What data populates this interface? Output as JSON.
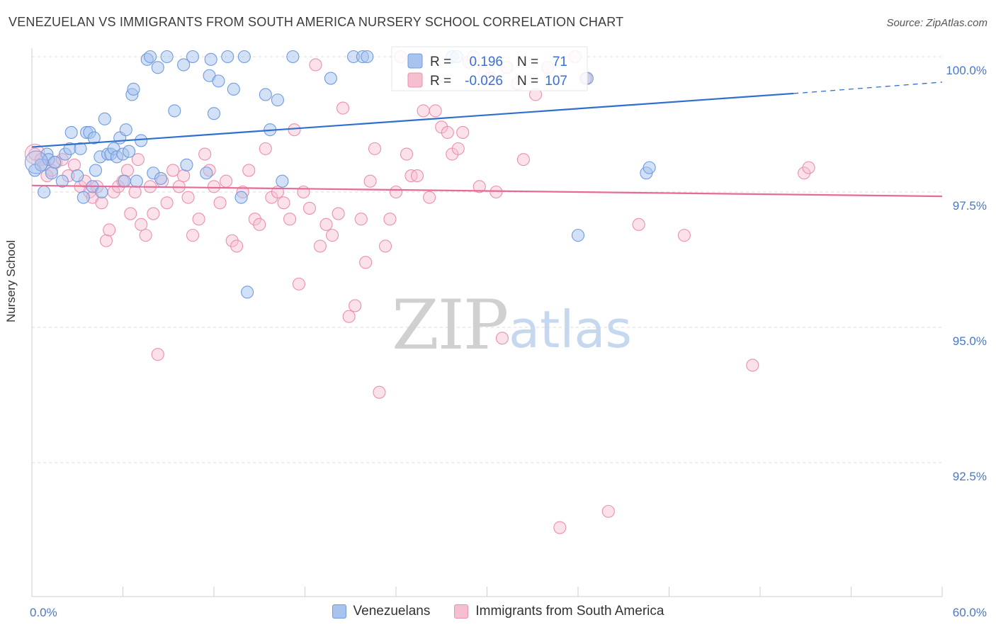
{
  "title": "VENEZUELAN VS IMMIGRANTS FROM SOUTH AMERICA NURSERY SCHOOL CORRELATION CHART",
  "source": "Source: ZipAtlas.com",
  "watermark": {
    "zip": "ZIP",
    "atlas": "atlas"
  },
  "colors": {
    "blue_fill": "#a8c4ee",
    "blue_stroke": "#6f9be0",
    "blue_line": "#2f6fce",
    "pink_fill": "#f6bfd0",
    "pink_stroke": "#ec8fae",
    "pink_line": "#e86b95",
    "axis_label": "#4a78c8",
    "grid": "#dddddd"
  },
  "stats": {
    "blue": {
      "r_label": "R =",
      "r_value": "0.196",
      "n_label": "N =",
      "n_value": "71"
    },
    "pink": {
      "r_label": "R =",
      "r_value": "-0.026",
      "n_label": "N =",
      "n_value": "107"
    }
  },
  "legend": {
    "blue": "Venezuelans",
    "pink": "Immigrants from South America"
  },
  "chart_data": {
    "type": "scatter",
    "title": "VENEZUELAN VS IMMIGRANTS FROM SOUTH AMERICA NURSERY SCHOOL CORRELATION CHART",
    "xlabel": "",
    "ylabel": "Nursery School",
    "xlim": [
      0,
      60
    ],
    "ylim": [
      90.5,
      100.4
    ],
    "x_tick_labels": [
      "0.0%",
      "60.0%"
    ],
    "y_ticks": [
      100.0,
      97.5,
      95.0,
      92.5
    ],
    "y_tick_labels": [
      "100.0%",
      "97.5%",
      "95.0%",
      "92.5%"
    ],
    "grid": true,
    "legend_position": "bottom",
    "series": [
      {
        "name": "Venezuelans",
        "color": "#a8c4ee",
        "trend": {
          "x": [
            0,
            50.2
          ],
          "y": [
            98.33,
            99.32
          ],
          "dashed_to": [
            60,
            99.53
          ]
        },
        "points": [
          [
            0.2,
            97.9
          ],
          [
            0.6,
            98.0
          ],
          [
            0.8,
            97.5
          ],
          [
            1.0,
            98.2
          ],
          [
            1.1,
            98.1
          ],
          [
            1.3,
            97.85
          ],
          [
            1.5,
            98.05
          ],
          [
            2.0,
            97.7
          ],
          [
            2.2,
            98.2
          ],
          [
            2.5,
            98.3
          ],
          [
            2.6,
            98.6
          ],
          [
            3.0,
            97.8
          ],
          [
            3.2,
            98.3
          ],
          [
            3.4,
            97.4
          ],
          [
            3.6,
            98.6
          ],
          [
            3.8,
            98.6
          ],
          [
            4.0,
            97.6
          ],
          [
            4.1,
            98.5
          ],
          [
            4.2,
            97.9
          ],
          [
            4.5,
            98.15
          ],
          [
            4.6,
            97.5
          ],
          [
            4.8,
            98.85
          ],
          [
            5.0,
            98.2
          ],
          [
            5.2,
            98.2
          ],
          [
            5.4,
            98.3
          ],
          [
            5.6,
            98.15
          ],
          [
            5.8,
            98.5
          ],
          [
            6.0,
            98.2
          ],
          [
            6.1,
            97.7
          ],
          [
            6.2,
            98.65
          ],
          [
            6.4,
            98.25
          ],
          [
            6.6,
            99.3
          ],
          [
            6.7,
            99.4
          ],
          [
            6.9,
            97.7
          ],
          [
            7.2,
            98.45
          ],
          [
            7.6,
            99.95
          ],
          [
            7.8,
            100.0
          ],
          [
            8.0,
            97.85
          ],
          [
            8.3,
            99.8
          ],
          [
            8.5,
            97.75
          ],
          [
            8.9,
            100.0
          ],
          [
            9.4,
            99.0
          ],
          [
            10.0,
            99.85
          ],
          [
            10.2,
            98.0
          ],
          [
            10.6,
            100.0
          ],
          [
            11.5,
            97.85
          ],
          [
            11.7,
            99.65
          ],
          [
            11.8,
            99.95
          ],
          [
            12.0,
            98.95
          ],
          [
            12.3,
            99.55
          ],
          [
            12.9,
            100.0
          ],
          [
            13.3,
            99.4
          ],
          [
            13.8,
            97.4
          ],
          [
            14.0,
            100.0
          ],
          [
            14.2,
            95.65
          ],
          [
            15.4,
            99.3
          ],
          [
            15.7,
            98.65
          ],
          [
            16.2,
            99.2
          ],
          [
            16.5,
            97.7
          ],
          [
            17.2,
            100.0
          ],
          [
            19.7,
            99.6
          ],
          [
            21.2,
            100.0
          ],
          [
            21.8,
            100.0
          ],
          [
            22.1,
            100.0
          ],
          [
            27.7,
            100.0
          ],
          [
            36.0,
            96.7
          ],
          [
            36.6,
            99.6
          ],
          [
            40.5,
            97.85
          ],
          [
            40.7,
            97.95
          ],
          [
            28.0,
            100.0
          ]
        ]
      },
      {
        "name": "Immigrants from South America",
        "color": "#f6bfd0",
        "trend": {
          "x": [
            0,
            60
          ],
          "y": [
            97.62,
            97.42
          ]
        },
        "points": [
          [
            0.2,
            98.2
          ],
          [
            0.6,
            98.1
          ],
          [
            0.8,
            98.0
          ],
          [
            1.0,
            97.8
          ],
          [
            1.3,
            97.9
          ],
          [
            1.6,
            98.05
          ],
          [
            2.0,
            98.1
          ],
          [
            2.4,
            97.8
          ],
          [
            2.8,
            98.0
          ],
          [
            3.2,
            97.6
          ],
          [
            3.5,
            97.7
          ],
          [
            3.8,
            97.5
          ],
          [
            4.0,
            97.4
          ],
          [
            4.3,
            97.6
          ],
          [
            4.6,
            97.3
          ],
          [
            4.9,
            96.6
          ],
          [
            5.1,
            96.8
          ],
          [
            5.4,
            97.5
          ],
          [
            5.7,
            97.6
          ],
          [
            6.0,
            97.7
          ],
          [
            6.3,
            97.9
          ],
          [
            6.5,
            97.1
          ],
          [
            6.8,
            97.5
          ],
          [
            7.0,
            98.1
          ],
          [
            7.2,
            96.9
          ],
          [
            7.5,
            96.7
          ],
          [
            7.8,
            97.6
          ],
          [
            8.0,
            97.1
          ],
          [
            8.3,
            94.5
          ],
          [
            8.6,
            97.7
          ],
          [
            8.9,
            97.3
          ],
          [
            9.3,
            97.9
          ],
          [
            9.7,
            97.6
          ],
          [
            10.0,
            97.8
          ],
          [
            10.3,
            97.4
          ],
          [
            10.6,
            96.7
          ],
          [
            11.0,
            97.0
          ],
          [
            11.4,
            98.2
          ],
          [
            11.7,
            97.9
          ],
          [
            12.0,
            97.6
          ],
          [
            12.4,
            97.3
          ],
          [
            12.8,
            97.7
          ],
          [
            13.2,
            96.6
          ],
          [
            13.5,
            96.5
          ],
          [
            13.9,
            97.5
          ],
          [
            14.3,
            97.9
          ],
          [
            14.7,
            97.0
          ],
          [
            15.0,
            96.9
          ],
          [
            15.4,
            98.3
          ],
          [
            15.8,
            97.4
          ],
          [
            16.2,
            97.5
          ],
          [
            16.6,
            97.3
          ],
          [
            17.0,
            97.0
          ],
          [
            17.3,
            98.65
          ],
          [
            17.6,
            95.8
          ],
          [
            17.9,
            97.5
          ],
          [
            18.3,
            97.2
          ],
          [
            18.7,
            99.85
          ],
          [
            19.0,
            96.5
          ],
          [
            19.4,
            96.9
          ],
          [
            19.8,
            96.7
          ],
          [
            20.2,
            97.1
          ],
          [
            20.5,
            99.05
          ],
          [
            20.9,
            95.2
          ],
          [
            21.3,
            95.4
          ],
          [
            21.7,
            97.0
          ],
          [
            22.0,
            96.2
          ],
          [
            22.3,
            97.7
          ],
          [
            22.6,
            98.3
          ],
          [
            22.9,
            93.8
          ],
          [
            23.3,
            96.5
          ],
          [
            23.6,
            97.0
          ],
          [
            24.0,
            97.5
          ],
          [
            24.3,
            100.0
          ],
          [
            24.7,
            98.2
          ],
          [
            25.0,
            97.8
          ],
          [
            25.4,
            97.8
          ],
          [
            25.8,
            99.0
          ],
          [
            26.2,
            97.4
          ],
          [
            26.6,
            99.0
          ],
          [
            27.0,
            98.7
          ],
          [
            27.4,
            98.6
          ],
          [
            27.7,
            98.2
          ],
          [
            28.1,
            98.3
          ],
          [
            28.4,
            98.6
          ],
          [
            28.8,
            99.9
          ],
          [
            29.1,
            100.0
          ],
          [
            29.5,
            97.6
          ],
          [
            29.8,
            99.7
          ],
          [
            30.2,
            99.6
          ],
          [
            30.6,
            97.5
          ],
          [
            31.0,
            94.8
          ],
          [
            31.3,
            99.8
          ],
          [
            32.0,
            99.5
          ],
          [
            32.4,
            98.1
          ],
          [
            33.2,
            99.3
          ],
          [
            34.0,
            99.8
          ],
          [
            34.8,
            91.3
          ],
          [
            35.8,
            100.0
          ],
          [
            36.5,
            99.6
          ],
          [
            38.0,
            91.6
          ],
          [
            40.0,
            96.9
          ],
          [
            43.0,
            96.7
          ],
          [
            47.5,
            94.3
          ],
          [
            50.9,
            97.85
          ],
          [
            51.2,
            97.95
          ]
        ]
      }
    ]
  }
}
